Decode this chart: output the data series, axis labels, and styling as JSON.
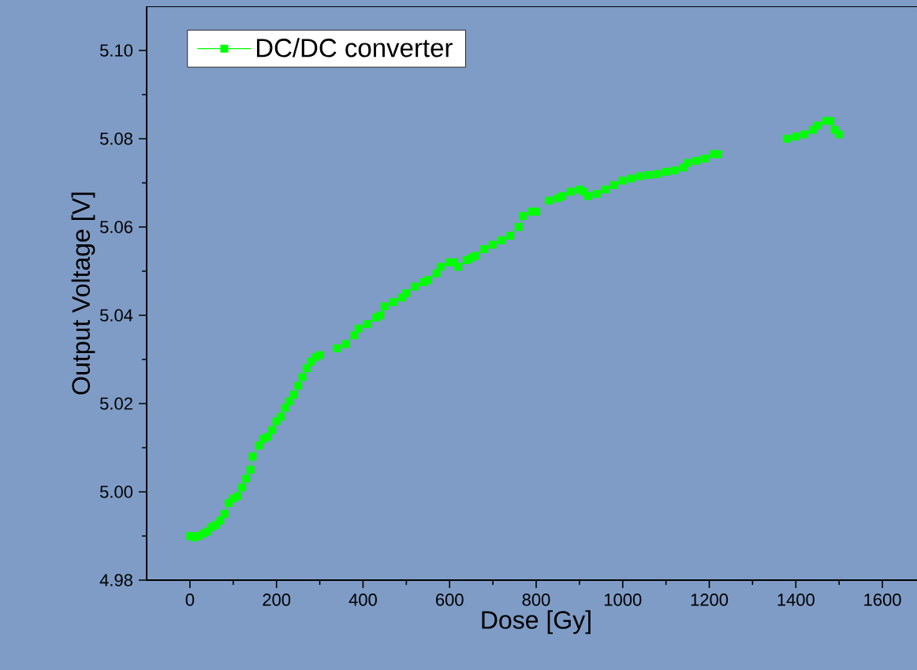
{
  "chart_data": {
    "type": "line",
    "xlabel": "Dose [Gy]",
    "ylabel": "Output Voltage [V]",
    "x": [
      0,
      10,
      20,
      30,
      40,
      50,
      60,
      70,
      80,
      90,
      100,
      110,
      120,
      130,
      140,
      145,
      160,
      170,
      180,
      190,
      200,
      210,
      220,
      230,
      240,
      250,
      260,
      270,
      280,
      290,
      300,
      320,
      340,
      360,
      380,
      390,
      410,
      430,
      440,
      450,
      470,
      490,
      500,
      520,
      540,
      550,
      570,
      580,
      600,
      610,
      620,
      640,
      650,
      660,
      680,
      700,
      720,
      740,
      760,
      770,
      790,
      800,
      815,
      830,
      850,
      860,
      880,
      900,
      910,
      920,
      940,
      960,
      980,
      1000,
      1020,
      1040,
      1060,
      1080,
      1100,
      1120,
      1140,
      1150,
      1170,
      1190,
      1210,
      1220,
      1300,
      1380,
      1400,
      1420,
      1440,
      1450,
      1470,
      1480,
      1490,
      1500
    ],
    "series": [
      {
        "name": "DC/DC converter",
        "color": "#00ff00",
        "values": [
          4.99,
          4.9897,
          4.99,
          4.9905,
          4.991,
          4.992,
          4.9925,
          4.9935,
          4.995,
          4.9975,
          4.9985,
          4.999,
          5.001,
          5.003,
          5.005,
          5.008,
          5.0105,
          5.012,
          5.0125,
          5.014,
          5.016,
          5.017,
          5.019,
          5.0205,
          5.022,
          5.024,
          5.026,
          5.028,
          5.0295,
          5.0305,
          5.031,
          null,
          5.0325,
          5.0335,
          5.0355,
          5.037,
          5.038,
          5.0395,
          5.04,
          5.042,
          5.043,
          5.044,
          5.045,
          5.0465,
          5.0475,
          5.048,
          5.0495,
          5.051,
          5.052,
          5.052,
          5.051,
          5.0525,
          5.053,
          5.0535,
          5.055,
          5.056,
          5.057,
          5.058,
          5.06,
          5.0625,
          5.0635,
          5.0635,
          null,
          5.066,
          5.0665,
          5.067,
          5.068,
          5.0685,
          5.068,
          5.067,
          5.0675,
          5.0685,
          5.0695,
          5.0705,
          5.071,
          5.0715,
          5.0718,
          5.072,
          5.0725,
          5.0728,
          5.0735,
          5.0745,
          5.075,
          5.0755,
          5.0765,
          5.0765,
          null,
          5.08,
          5.0805,
          5.081,
          5.082,
          5.083,
          5.084,
          5.084,
          5.082,
          5.081
        ]
      }
    ],
    "xlim": [
      -100,
      1700
    ],
    "ylim": [
      4.98,
      5.11
    ],
    "xticks": [
      0,
      200,
      400,
      600,
      800,
      1000,
      1200,
      1400,
      1600
    ],
    "yticks": [
      {
        "value": 4.98,
        "label": "4.98"
      },
      {
        "value": 5.0,
        "label": "5.00"
      },
      {
        "value": 5.02,
        "label": "5.02"
      },
      {
        "value": 5.04,
        "label": "5.04"
      },
      {
        "value": 5.06,
        "label": "5.06"
      },
      {
        "value": 5.08,
        "label": "5.08"
      },
      {
        "value": 5.1,
        "label": "5.10"
      }
    ],
    "grid": false,
    "legend": "top left",
    "marker": "square",
    "line_style": "solid"
  }
}
